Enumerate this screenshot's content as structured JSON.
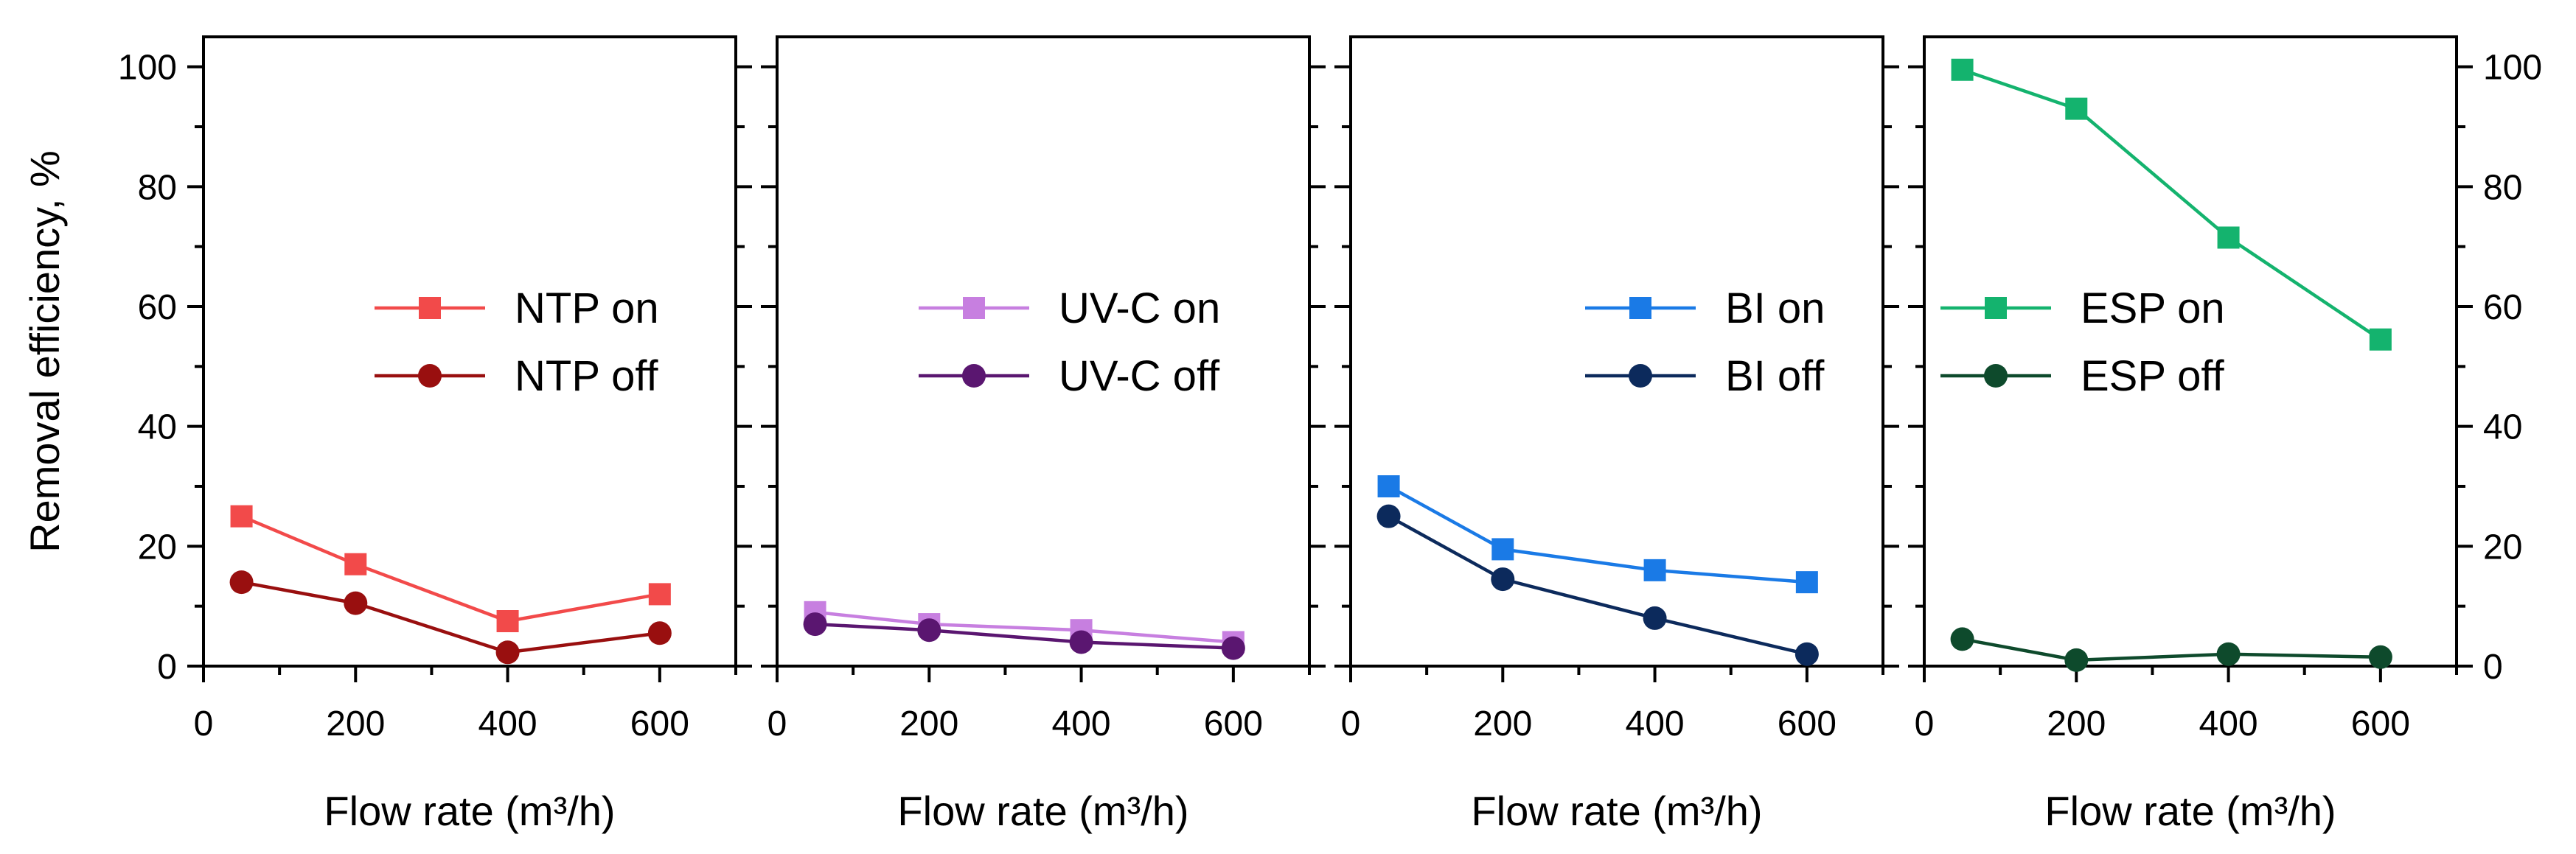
{
  "chart_data": {
    "type": "line",
    "ylabel": "Removal efficiency, %",
    "ylim": [
      0,
      105
    ],
    "y_ticks": [
      0,
      20,
      40,
      60,
      80,
      100
    ],
    "xlim": [
      0,
      700
    ],
    "x_ticks": [
      0,
      200,
      400,
      600
    ],
    "panels": [
      {
        "xlabel": "Flow rate (m³/h)",
        "x": [
          50,
          200,
          400,
          600
        ],
        "series": [
          {
            "name": "NTP on",
            "marker": "square",
            "color": "#f24a4a",
            "values": [
              25,
              17,
              7.5,
              12
            ]
          },
          {
            "name": "NTP off",
            "marker": "circle",
            "color": "#990f0f",
            "values": [
              14,
              10.5,
              2.3,
              5.5
            ]
          }
        ]
      },
      {
        "xlabel": "Flow rate (m³/h)",
        "x": [
          50,
          200,
          400,
          600
        ],
        "series": [
          {
            "name": "UV-C on",
            "marker": "square",
            "color": "#c77fe0",
            "values": [
              9,
              7,
              6,
              4
            ]
          },
          {
            "name": "UV-C off",
            "marker": "circle",
            "color": "#5a1670",
            "values": [
              7,
              6,
              4,
              3
            ]
          }
        ]
      },
      {
        "xlabel": "Flow rate (m³/h)",
        "x": [
          50,
          200,
          400,
          600
        ],
        "series": [
          {
            "name": "BI on",
            "marker": "square",
            "color": "#1a7ae6",
            "values": [
              30,
              19.5,
              16,
              14
            ]
          },
          {
            "name": "BI off",
            "marker": "circle",
            "color": "#0c2a5c",
            "values": [
              25,
              14.5,
              8,
              2
            ]
          }
        ]
      },
      {
        "xlabel": "Flow rate (m³/h)",
        "x": [
          50,
          200,
          400,
          600
        ],
        "series": [
          {
            "name": "ESP on",
            "marker": "square",
            "color": "#14b36e",
            "values": [
              99.5,
              93,
              71.5,
              54.5
            ]
          },
          {
            "name": "ESP off",
            "marker": "circle",
            "color": "#0e4a2c",
            "values": [
              4.5,
              1,
              2,
              1.5
            ]
          }
        ]
      }
    ]
  }
}
